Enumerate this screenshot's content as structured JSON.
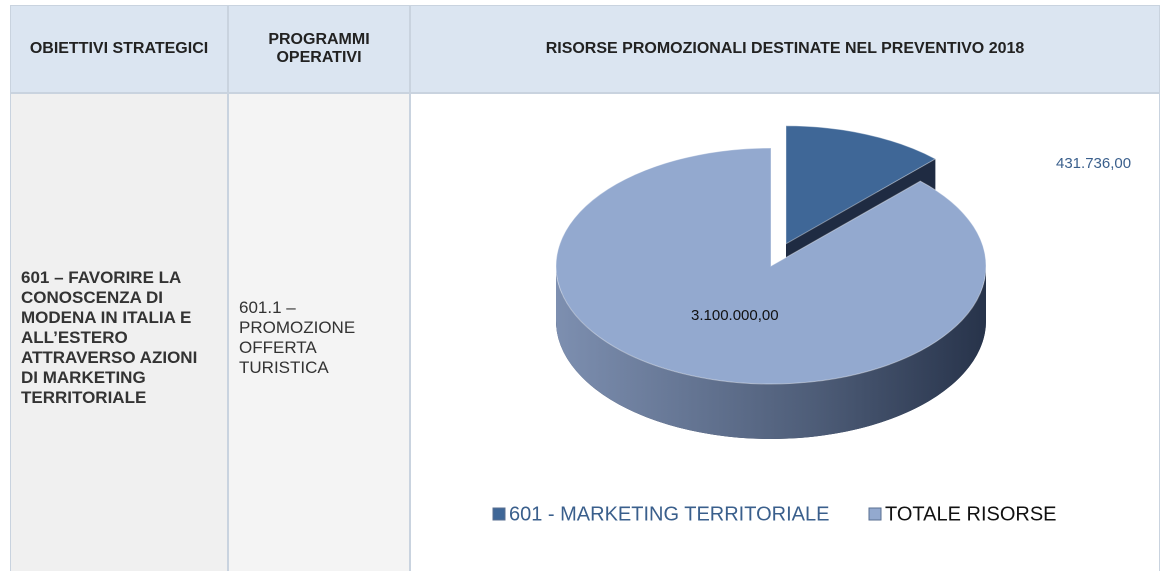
{
  "table": {
    "headers": [
      "OBIETTIVI STRATEGICI",
      "PROGRAMMI OPERATIVI",
      "RISORSE PROMOZIONALI DESTINATE NEL PREVENTIVO 2018"
    ],
    "rows": [
      [
        "601 – FAVORIRE LA CONOSCENZA DI MODENA IN ITALIA E ALL’ESTERO ATTRAVERSO AZIONI DI MARKETING TERRITORIALE",
        "601.1 – PROMOZIONE OFFERTA TURISTICA"
      ]
    ]
  },
  "chart_data": {
    "type": "pie",
    "categories": [
      "601 - MARKETING TERRITORIALE",
      "TOTALE RISORSE"
    ],
    "values": [
      431736,
      3100000
    ],
    "value_labels": [
      "431.736,00",
      "3.100.000,00"
    ],
    "colors": [
      "#3f6797",
      "#93a9cf"
    ],
    "legend": "bottom"
  }
}
